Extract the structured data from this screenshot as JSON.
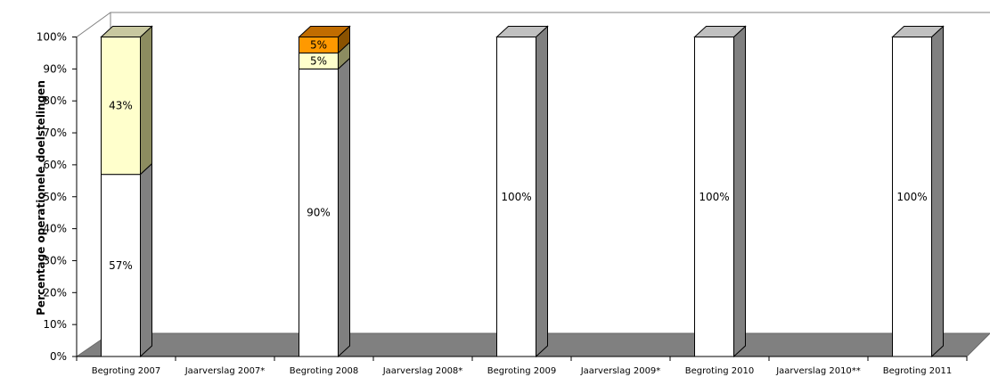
{
  "chart_data": {
    "type": "bar",
    "stacked": true,
    "style": "3d-column",
    "ylabel": "Percentage operationele doelstelingen",
    "xlabel": "",
    "ylim": [
      0,
      100
    ],
    "yticks": [
      "0%",
      "10%",
      "20%",
      "30%",
      "40%",
      "50%",
      "60%",
      "70%",
      "80%",
      "90%",
      "100%"
    ],
    "grid": false,
    "categories": [
      "Begroting 2007",
      "Jaarverslag 2007*",
      "Begroting 2008",
      "Jaarverslag 2008*",
      "Begroting 2009",
      "Jaarverslag 2009*",
      "Begroting 2010",
      "Jaarverslag 2010**",
      "Begroting 2011"
    ],
    "series": [
      {
        "color": "#ffffff",
        "values": [
          57,
          null,
          90,
          null,
          100,
          null,
          100,
          null,
          100
        ],
        "labels": [
          "57%",
          null,
          "90%",
          null,
          "100%",
          null,
          "100%",
          null,
          "100%"
        ]
      },
      {
        "color": "#ffffcc",
        "values": [
          43,
          null,
          5,
          null,
          0,
          null,
          0,
          null,
          0
        ],
        "labels": [
          "43%",
          null,
          "5%",
          null,
          null,
          null,
          null,
          null,
          null
        ]
      },
      {
        "color": "#ff9900",
        "values": [
          0,
          null,
          5,
          null,
          0,
          null,
          0,
          null,
          0
        ],
        "labels": [
          null,
          null,
          "5%",
          null,
          null,
          null,
          null,
          null,
          null
        ]
      }
    ]
  }
}
